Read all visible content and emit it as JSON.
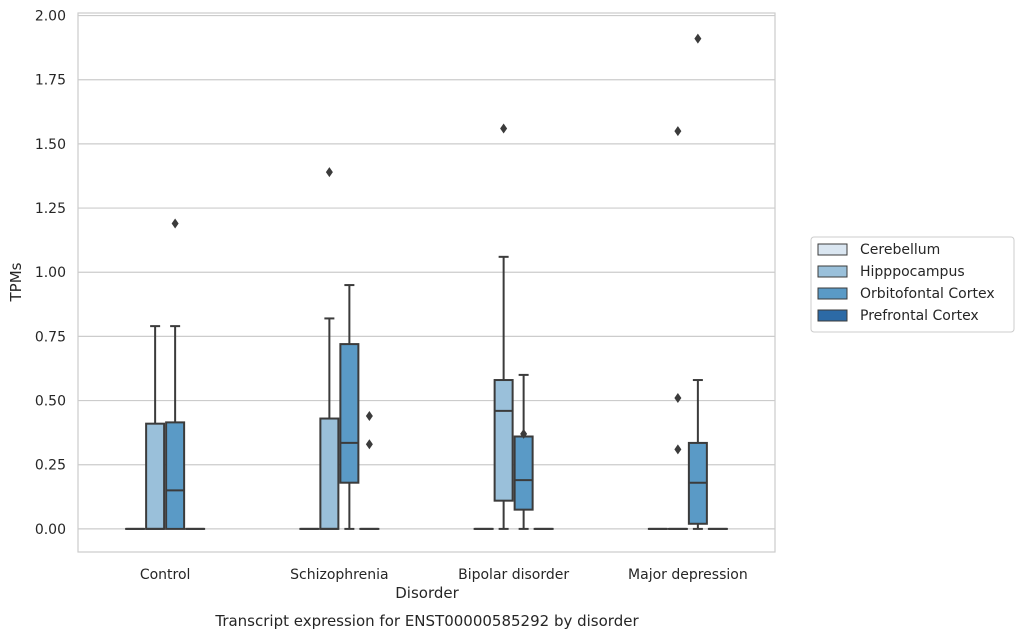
{
  "chart_data": {
    "type": "box",
    "title": "Transcript expression for ENST00000585292 by disorder",
    "xlabel": "Disorder",
    "ylabel": "TPMs",
    "ylim": [
      -0.09,
      2.01
    ],
    "yticks": [
      "0.00",
      "0.25",
      "0.50",
      "0.75",
      "1.00",
      "1.25",
      "1.50",
      "1.75",
      "2.00"
    ],
    "grid": true,
    "legend_position": "right",
    "categories": [
      "Control",
      "Schizophrenia",
      "Bipolar disorder",
      "Major depression"
    ],
    "series": [
      {
        "name": "Cerebellum",
        "color": "#dae6f1",
        "boxes": [
          {
            "q1": 0,
            "median": 0,
            "q3": 0,
            "whisker_low": 0,
            "whisker_high": 0,
            "outliers": []
          },
          {
            "q1": 0,
            "median": 0,
            "q3": 0,
            "whisker_low": 0,
            "whisker_high": 0,
            "outliers": []
          },
          {
            "q1": 0,
            "median": 0,
            "q3": 0,
            "whisker_low": 0,
            "whisker_high": 0,
            "outliers": []
          },
          {
            "q1": 0,
            "median": 0,
            "q3": 0,
            "whisker_low": 0,
            "whisker_high": 0,
            "outliers": []
          }
        ]
      },
      {
        "name": "Hipppocampus",
        "color": "#9ac0da",
        "boxes": [
          {
            "q1": 0,
            "median": 0,
            "q3": 0.41,
            "whisker_low": 0,
            "whisker_high": 0.79,
            "outliers": []
          },
          {
            "q1": 0,
            "median": 0,
            "q3": 0.43,
            "whisker_low": 0,
            "whisker_high": 0.82,
            "outliers": [
              1.39
            ]
          },
          {
            "q1": 0.11,
            "median": 0.46,
            "q3": 0.58,
            "whisker_low": 0,
            "whisker_high": 1.06,
            "outliers": [
              1.56
            ]
          },
          {
            "q1": 0,
            "median": 0,
            "q3": 0,
            "whisker_low": 0,
            "whisker_high": 0,
            "outliers": [
              0.31,
              0.51,
              1.55
            ]
          }
        ]
      },
      {
        "name": "Orbitofontal Cortex",
        "color": "#5a9ac6",
        "boxes": [
          {
            "q1": 0,
            "median": 0.15,
            "q3": 0.415,
            "whisker_low": 0,
            "whisker_high": 0.79,
            "outliers": [
              1.19
            ]
          },
          {
            "q1": 0.18,
            "median": 0.335,
            "q3": 0.72,
            "whisker_low": 0,
            "whisker_high": 0.95,
            "outliers": []
          },
          {
            "q1": 0.075,
            "median": 0.19,
            "q3": 0.36,
            "whisker_low": 0,
            "whisker_high": 0.6,
            "outliers": [
              0.37
            ]
          },
          {
            "q1": 0.02,
            "median": 0.18,
            "q3": 0.335,
            "whisker_low": 0,
            "whisker_high": 0.58,
            "outliers": [
              1.91
            ]
          }
        ]
      },
      {
        "name": "Prefrontal Cortex",
        "color": "#2c6aa6",
        "boxes": [
          {
            "q1": 0,
            "median": 0,
            "q3": 0,
            "whisker_low": 0,
            "whisker_high": 0,
            "outliers": []
          },
          {
            "q1": 0,
            "median": 0,
            "q3": 0,
            "whisker_low": 0,
            "whisker_high": 0,
            "outliers": [
              0.33,
              0.44
            ]
          },
          {
            "q1": 0,
            "median": 0,
            "q3": 0,
            "whisker_low": 0,
            "whisker_high": 0,
            "outliers": []
          },
          {
            "q1": 0,
            "median": 0,
            "q3": 0,
            "whisker_low": 0,
            "whisker_high": 0,
            "outliers": []
          }
        ]
      }
    ]
  }
}
